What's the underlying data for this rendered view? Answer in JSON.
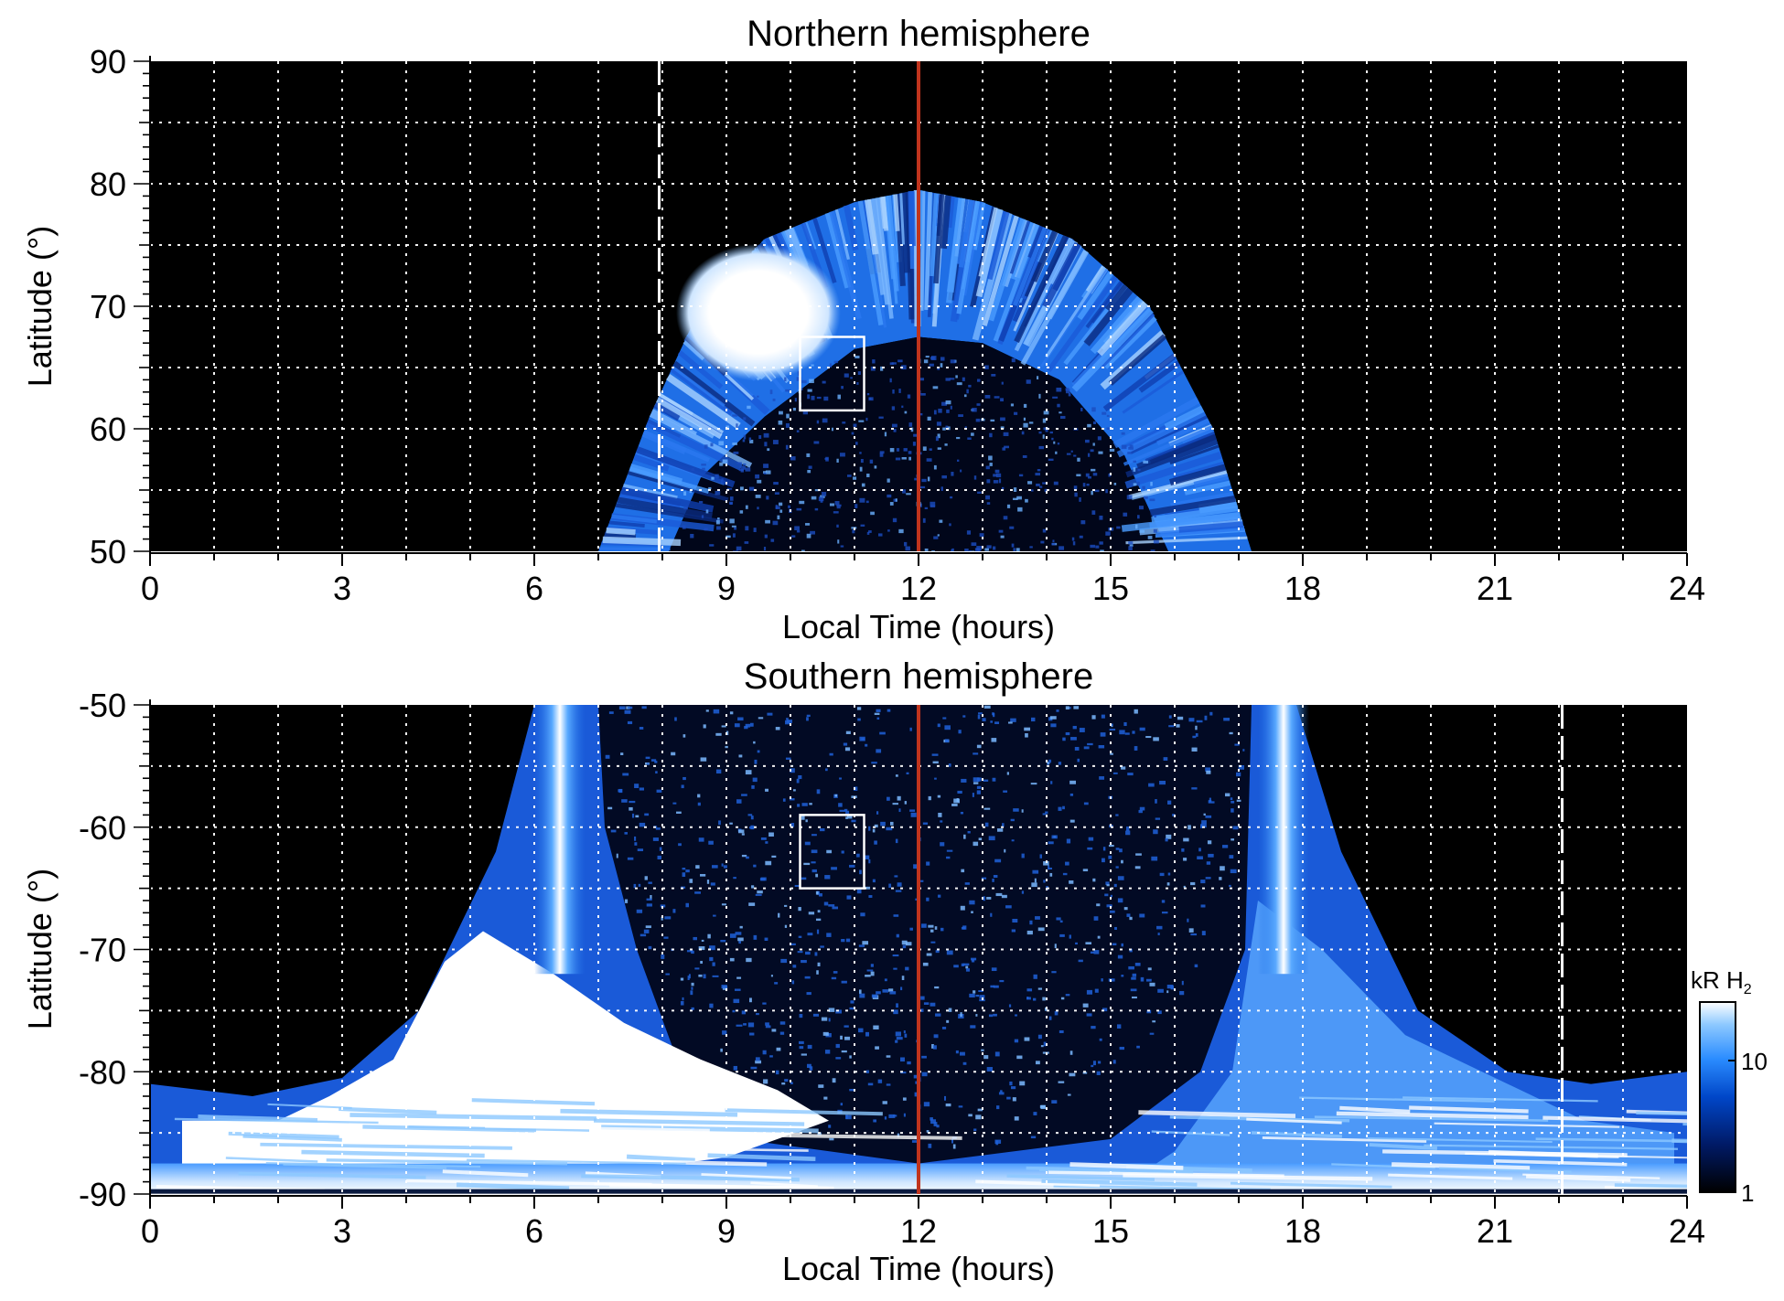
{
  "chart_data": [
    {
      "type": "heatmap",
      "title": "Northern hemisphere",
      "xlabel": "Local Time (hours)",
      "ylabel": "Latitude (°)",
      "xlim": [
        0,
        24
      ],
      "ylim": [
        50,
        90
      ],
      "xticks": [
        "0",
        "3",
        "6",
        "9",
        "12",
        "15",
        "18",
        "21",
        "24"
      ],
      "yticks": [
        "50",
        "60",
        "70",
        "80",
        "90"
      ],
      "grid": true,
      "background": "#000000",
      "oval": [
        {
          "lt": 7.0,
          "lat": 50
        },
        {
          "lt": 7.8,
          "lat": 61
        },
        {
          "lt": 8.6,
          "lat": 70
        },
        {
          "lt": 9.6,
          "lat": 75.5
        },
        {
          "lt": 11.0,
          "lat": 78.5
        },
        {
          "lt": 12.0,
          "lat": 79.5
        },
        {
          "lt": 13.0,
          "lat": 78.5
        },
        {
          "lt": 14.4,
          "lat": 75.5
        },
        {
          "lt": 15.6,
          "lat": 70
        },
        {
          "lt": 16.6,
          "lat": 60
        },
        {
          "lt": 17.2,
          "lat": 50
        }
      ],
      "inner_boundary": [
        {
          "lt": 8.1,
          "lat": 50
        },
        {
          "lt": 8.6,
          "lat": 56
        },
        {
          "lt": 9.6,
          "lat": 61
        },
        {
          "lt": 11.0,
          "lat": 66.5
        },
        {
          "lt": 12.0,
          "lat": 67.5
        },
        {
          "lt": 13.0,
          "lat": 67
        },
        {
          "lt": 14.2,
          "lat": 64
        },
        {
          "lt": 15.2,
          "lat": 58
        },
        {
          "lt": 15.9,
          "lat": 50
        }
      ],
      "bright_spot": {
        "lt": 9.5,
        "lat": 69.5
      },
      "dashed_line_lt": 7.95,
      "noon_line_lt": 12,
      "box": {
        "lt": [
          10.15,
          11.15
        ],
        "lat": [
          61.5,
          67.5
        ]
      }
    },
    {
      "type": "heatmap",
      "title": "Southern hemisphere",
      "xlabel": "Local Time (hours)",
      "ylabel": "Latitude (°)",
      "xlim": [
        0,
        24
      ],
      "ylim": [
        -90,
        -50
      ],
      "xticks": [
        "0",
        "3",
        "6",
        "9",
        "12",
        "15",
        "18",
        "21",
        "24"
      ],
      "yticks": [
        "-90",
        "-80",
        "-70",
        "-60",
        "-50"
      ],
      "grid": true,
      "background": "#000000",
      "left_band_lt": 6.4,
      "right_band_lt": 17.7,
      "dashed_line_lt": 22.05,
      "noon_line_lt": 12,
      "box": {
        "lt": [
          10.15,
          11.15
        ],
        "lat": [
          -65,
          -59
        ]
      }
    }
  ],
  "colorbar": {
    "title": "kR H",
    "title_subscript": "2",
    "ticks": [
      "1",
      "10"
    ],
    "colors": [
      "#000000",
      "#001a66",
      "#0046c8",
      "#2a8cff",
      "#8cc8ff",
      "#ffffff"
    ]
  },
  "colors": {
    "noon_line": "#c0341d",
    "grid": "#ffffff",
    "box": "#ffffff"
  }
}
